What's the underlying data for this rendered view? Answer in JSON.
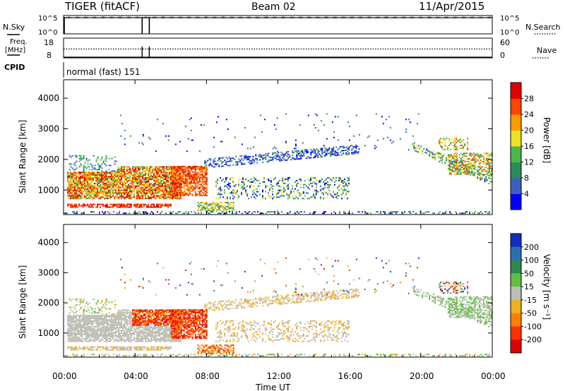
{
  "header": {
    "title": "TIGER (fitACF)",
    "beam": "Beam 02",
    "date": "11/Apr/2015"
  },
  "side_labels": {
    "nsky": "N.Sky",
    "nsearch": "N.Search",
    "freq_line1": "Freq.",
    "freq_line2": "[MHz]",
    "nave": "Nave",
    "cpid": "CPID"
  },
  "cpid_text": "normal (fast) 151",
  "chart_data": [
    {
      "type": "line",
      "name": "noise-panel",
      "ylabels_left": [
        "10^5",
        "10^0"
      ],
      "ylabels_right": [
        "10^5",
        "10^0"
      ],
      "series": [
        {
          "name": "N.Sky",
          "style": "solid"
        },
        {
          "name": "N.Search",
          "style": "dotted"
        }
      ],
      "gaps_hours": [
        0.0,
        4.4,
        4.8
      ]
    },
    {
      "type": "line",
      "name": "frequency-panel",
      "ylabels_left": [
        "18",
        "8"
      ],
      "ylabels_right": [
        "60",
        "0"
      ],
      "ylim_left": [
        8,
        18
      ],
      "ylim_right": [
        0,
        60
      ],
      "series": [
        {
          "name": "Freq.",
          "values_mhz": [
            9.4
          ]
        },
        {
          "name": "Nave",
          "values": [
            27
          ]
        }
      ]
    },
    {
      "type": "heatmap",
      "name": "power-panel",
      "ylabel": "Slant Range [km]",
      "yticks": [
        1000,
        2000,
        3000,
        4000
      ],
      "ylim": [
        200,
        4600
      ],
      "xlim_hours": [
        0,
        24
      ],
      "colorbar_label": "Power [dB]",
      "colorbar_ticks": [
        "4",
        "8",
        "12",
        "16",
        "20",
        "24",
        "28"
      ],
      "colorbar_colors": [
        "#0000ff",
        "#3a5fbf",
        "#2f8a5a",
        "#48b848",
        "#f0e020",
        "#ff9a00",
        "#ff4400",
        "#e00000"
      ]
    },
    {
      "type": "heatmap",
      "name": "velocity-panel",
      "ylabel": "Slant Range [km]",
      "yticks": [
        1000,
        2000,
        3000,
        4000
      ],
      "ylim": [
        200,
        4600
      ],
      "xlim_hours": [
        0,
        24
      ],
      "colorbar_label": "Velocity [m s⁻¹]",
      "colorbar_ticks": [
        "200",
        "100",
        "50",
        "15",
        "-15",
        "-50",
        "-100",
        "-200"
      ],
      "colorbar_colors": [
        "#1030c0",
        "#2a70b0",
        "#2c8a50",
        "#60c040",
        "#bebeb6",
        "#f0b020",
        "#ff8000",
        "#ff3000",
        "#e00000"
      ]
    }
  ],
  "xaxis": {
    "ticks": [
      "00:00",
      "04:00",
      "08:00",
      "12:00",
      "16:00",
      "20:00",
      "00:00"
    ],
    "label": "Time UT"
  }
}
